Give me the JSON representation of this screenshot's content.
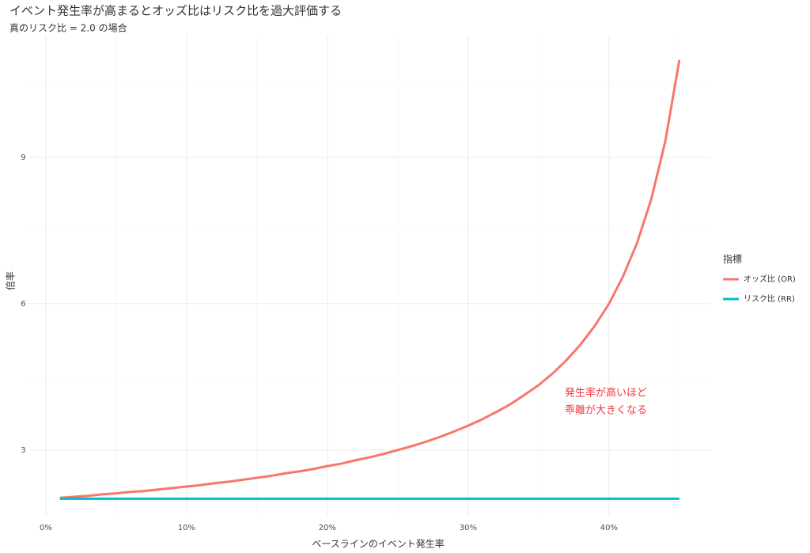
{
  "chart_data": {
    "type": "line",
    "title": "イベント発生率が高まるとオッズ比はリスク比を過大評価する",
    "subtitle": "真のリスク比 = 2.0 の場合",
    "x_label": "ベースラインのイベント発生率",
    "y_label": "倍率",
    "legend_title": "指標",
    "legend_position": "right",
    "annotation": [
      "発生率が高いほど",
      "乖離が大きくなる"
    ],
    "annotation_color": "#f8333c",
    "grid": true,
    "x": [
      0.01,
      0.02,
      0.03,
      0.04,
      0.05,
      0.06,
      0.07,
      0.08,
      0.09,
      0.1,
      0.11,
      0.12,
      0.13,
      0.14,
      0.15,
      0.16,
      0.17,
      0.18,
      0.19,
      0.2,
      0.21,
      0.22,
      0.23,
      0.24,
      0.25,
      0.26,
      0.27,
      0.28,
      0.29,
      0.3,
      0.31,
      0.32,
      0.33,
      0.34,
      0.35,
      0.36,
      0.37,
      0.38,
      0.39,
      0.4,
      0.41,
      0.42,
      0.43,
      0.44,
      0.45
    ],
    "series": [
      {
        "name": "オッズ比 (OR)",
        "color": "#F8766D",
        "values": [
          2.02,
          2.04,
          2.06,
          2.09,
          2.11,
          2.14,
          2.16,
          2.19,
          2.22,
          2.25,
          2.28,
          2.32,
          2.35,
          2.39,
          2.43,
          2.47,
          2.52,
          2.56,
          2.61,
          2.67,
          2.72,
          2.79,
          2.85,
          2.92,
          3.0,
          3.08,
          3.17,
          3.27,
          3.38,
          3.5,
          3.63,
          3.78,
          3.94,
          4.13,
          4.33,
          4.57,
          4.85,
          5.17,
          5.55,
          6.0,
          6.56,
          7.25,
          8.14,
          9.33,
          11.0
        ]
      },
      {
        "name": "リスク比 (RR)",
        "color": "#00BFC4",
        "values": [
          2,
          2,
          2,
          2,
          2,
          2,
          2,
          2,
          2,
          2,
          2,
          2,
          2,
          2,
          2,
          2,
          2,
          2,
          2,
          2,
          2,
          2,
          2,
          2,
          2,
          2,
          2,
          2,
          2,
          2,
          2,
          2,
          2,
          2,
          2,
          2,
          2,
          2,
          2,
          2,
          2,
          2,
          2,
          2,
          2
        ]
      }
    ],
    "xlim": [
      -0.012,
      0.472
    ],
    "xticks": [
      {
        "value": 0,
        "label": "0%"
      },
      {
        "value": 0.1,
        "label": "10%"
      },
      {
        "value": 0.2,
        "label": "20%"
      },
      {
        "value": 0.3,
        "label": "30%"
      },
      {
        "value": 0.4,
        "label": "40%"
      }
    ],
    "x_minor_ticks": [
      0.05,
      0.15,
      0.25,
      0.35,
      0.45
    ],
    "ylim": [
      1.65,
      11.5
    ],
    "yticks": [
      3,
      6,
      9
    ],
    "y_minor_ticks": [
      4.5,
      7.5,
      10.5
    ]
  }
}
